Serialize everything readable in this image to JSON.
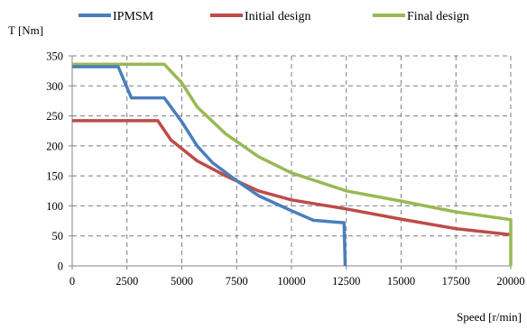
{
  "chart_data": {
    "type": "line",
    "title": "",
    "xlabel": "Speed [r/min]",
    "ylabel": "T [Nm]",
    "xlim": [
      0,
      20000
    ],
    "ylim": [
      0,
      350
    ],
    "xticks": [
      0,
      2500,
      5000,
      7500,
      10000,
      12500,
      15000,
      17500,
      20000
    ],
    "yticks": [
      0,
      50,
      100,
      150,
      200,
      250,
      300,
      350
    ],
    "xtick_labels": [
      "0",
      "2500",
      "5000",
      "7500",
      "10000",
      "12500",
      "15000",
      "17500",
      "20000"
    ],
    "ytick_labels": [
      "0",
      "50",
      "100",
      "150",
      "200",
      "250",
      "300",
      "350"
    ],
    "grid": true,
    "grid_style": "dashed",
    "legend_position": "top",
    "series": [
      {
        "name": "IPMSM",
        "color": "#4a7ebb",
        "x": [
          0,
          2100,
          2700,
          4200,
          5000,
          5700,
          6400,
          7500,
          8500,
          10000,
          11000,
          12000,
          12400,
          12450
        ],
        "y": [
          332,
          332,
          280,
          280,
          240,
          200,
          172,
          142,
          117,
          92,
          76,
          73,
          72,
          0
        ]
      },
      {
        "name": "Initial design",
        "color": "#be4b48",
        "x": [
          0,
          3900,
          4500,
          5700,
          7000,
          8500,
          10000,
          12500,
          15000,
          17500,
          20000
        ],
        "y": [
          242,
          242,
          210,
          175,
          150,
          125,
          110,
          95,
          78,
          62,
          52
        ]
      },
      {
        "name": "Final design",
        "color": "#98b954",
        "x": [
          0,
          4200,
          5000,
          5700,
          7000,
          8500,
          10000,
          12500,
          15000,
          17500,
          20000,
          20000
        ],
        "y": [
          336,
          336,
          305,
          265,
          220,
          182,
          155,
          125,
          108,
          90,
          77,
          0
        ]
      }
    ]
  }
}
